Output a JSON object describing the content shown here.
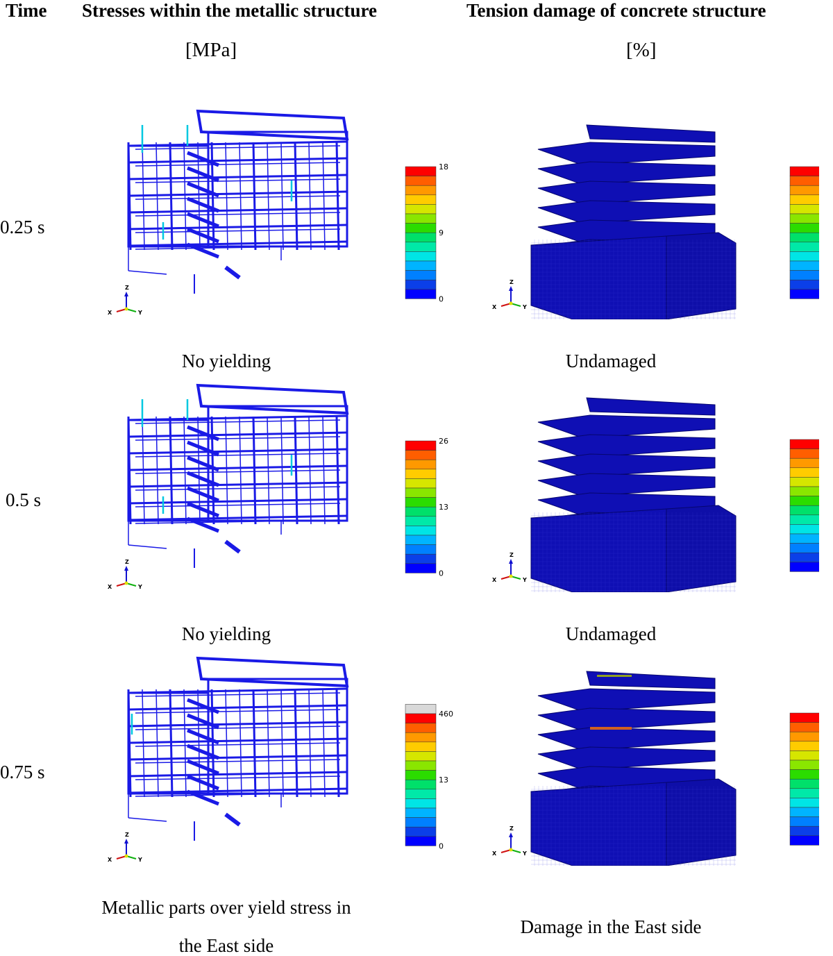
{
  "headers": {
    "time": "Time",
    "stress": "Stresses within the metallic structure",
    "damage": "Tension damage of concrete structure"
  },
  "units": {
    "stress": "[MPa]",
    "damage": "[%]"
  },
  "rows": [
    {
      "time": "0.25 s",
      "stress_scale": {
        "max": "18",
        "mid": "9",
        "min": "0",
        "has_grey_top": false
      },
      "damage_scale": {
        "max": "100",
        "mid": "50",
        "min": "0"
      },
      "stress_caption": "No yielding",
      "damage_caption": "Undamaged"
    },
    {
      "time": "0.5 s",
      "stress_scale": {
        "max": "26",
        "mid": "13",
        "min": "0",
        "has_grey_top": false
      },
      "damage_scale": {
        "max": "100",
        "mid": "50",
        "min": "0"
      },
      "stress_caption": "No yielding",
      "damage_caption": "Undamaged"
    },
    {
      "time": "0.75 s",
      "stress_scale": {
        "max": "460",
        "mid": "13",
        "min": "0",
        "has_grey_top": true
      },
      "damage_scale": {
        "max": "100",
        "mid": "50",
        "min": "0"
      },
      "stress_caption": "Metallic parts over yield stress in the East side",
      "stress_caption_lines": [
        "Metallic parts over yield stress in",
        "the East side"
      ],
      "damage_caption": "Damage in the East side"
    }
  ],
  "axis_triad": {
    "z": "Z",
    "x": "X",
    "y": "Y"
  },
  "colormap": [
    "#0000ff",
    "#0b3fe8",
    "#0080ff",
    "#00b4ff",
    "#00e5e5",
    "#00e9a8",
    "#00e06a",
    "#2bdc00",
    "#8ae600",
    "#d6e600",
    "#ffcc00",
    "#ff9900",
    "#ff5e00",
    "#ff0000"
  ],
  "colors": {
    "grey_top": "#d9d9d9",
    "steel": "#1a1ae6",
    "concrete": "#0f0fb4"
  }
}
